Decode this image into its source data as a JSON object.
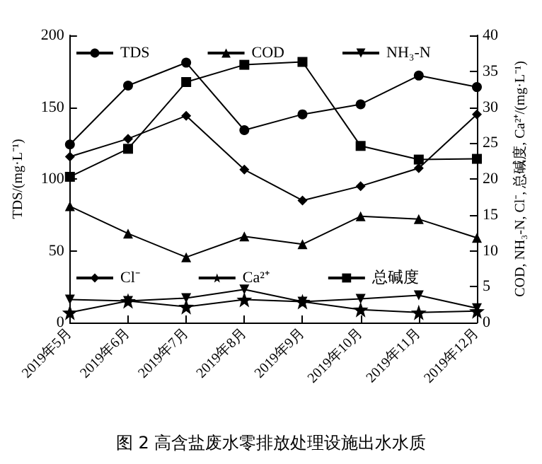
{
  "chart_data": {
    "type": "line",
    "title": "图 2 高含盐废水零排放处理设施出水水质",
    "categories": [
      "2019年5月",
      "2019年6月",
      "2019年7月",
      "2019年8月",
      "2019年9月",
      "2019年10月",
      "2019年11月",
      "2019年12月"
    ],
    "ylabel": "TDS/(mg·L⁻¹)",
    "y2label": "COD, NH₃-N, Cl⁻, 总碱度, Ca²⁺/(mg·L⁻¹)",
    "ylim": [
      0,
      200
    ],
    "yticks": [
      0,
      50,
      100,
      150,
      200
    ],
    "y2lim": [
      0,
      40
    ],
    "y2ticks": [
      0,
      5,
      10,
      15,
      20,
      25,
      30,
      35,
      40
    ],
    "grid": false,
    "legend": "top",
    "series": [
      {
        "name": "TDS",
        "color": "#000000",
        "marker": "circle",
        "values": [
          124,
          165,
          181,
          134,
          145,
          152,
          172,
          164
        ]
      },
      {
        "name": "COD",
        "color": "#000000",
        "marker": "triangle",
        "axis": "y2",
        "values": [
          16.2,
          12.4,
          9.1,
          12.0,
          10.9,
          14.8,
          14.4,
          11.8
        ]
      },
      {
        "name": "NH₃-N",
        "color": "#000000",
        "marker": "triangle-down",
        "axis": "y2",
        "values": [
          3.2,
          3.0,
          3.4,
          4.6,
          2.9,
          3.3,
          3.8,
          2.0
        ]
      },
      {
        "name": "Cl⁻",
        "color": "#000000",
        "marker": "diamond",
        "axis": "y2",
        "values": [
          23.1,
          25.6,
          28.8,
          21.3,
          17.0,
          19.0,
          21.5,
          29.0
        ]
      },
      {
        "name": "Ca²⁺",
        "color": "#000000",
        "marker": "star",
        "axis": "y2",
        "values": [
          1.4,
          3.0,
          2.2,
          3.2,
          2.9,
          1.8,
          1.4,
          1.6
        ]
      },
      {
        "name": "总碱度",
        "color": "#000000",
        "marker": "square",
        "axis": "y2",
        "values": [
          20.3,
          24.2,
          33.5,
          35.9,
          36.3,
          24.6,
          22.7,
          22.8
        ]
      }
    ]
  }
}
